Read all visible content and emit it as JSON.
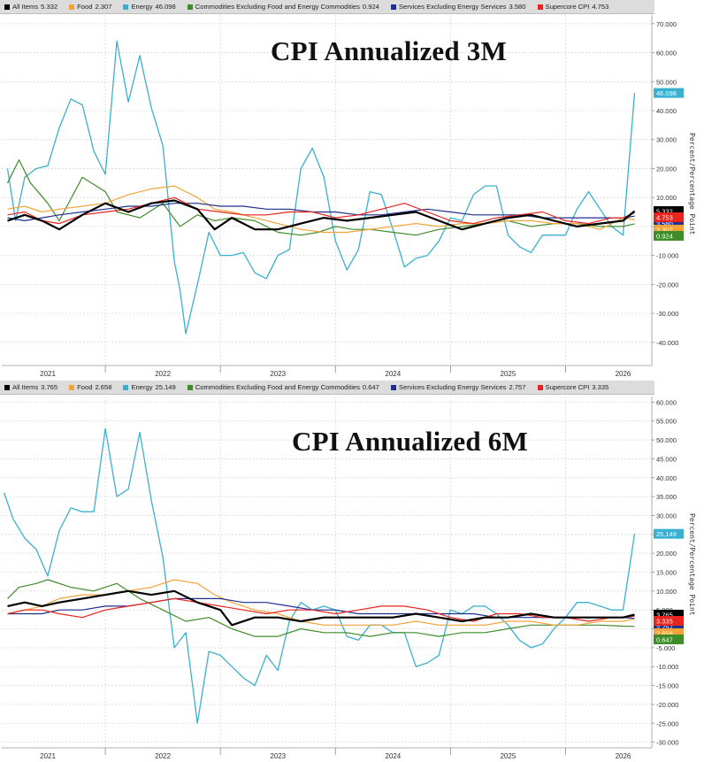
{
  "chart_data": [
    {
      "type": "line",
      "title": "CPI Annualized 3M",
      "ylabel": "Percent/Percentage Point",
      "ylim": [
        -48,
        73
      ],
      "yticks": [
        70,
        60,
        50,
        40,
        30,
        20,
        10,
        0,
        -10,
        -20,
        -30,
        -40
      ],
      "ytick_labels": [
        "70.000",
        "60.000",
        "50.000",
        "40.000",
        "30.000",
        "20.000",
        "10.000",
        "0",
        "-10.000",
        "-20.000",
        "-30.000",
        "-40.000"
      ],
      "xlim": [
        2020.6,
        2026.25
      ],
      "xticks": [
        2021,
        2022,
        2023,
        2024,
        2025,
        2026
      ],
      "xtick_labels": [
        "2021",
        "2022",
        "2023",
        "2024",
        "2025",
        "2026"
      ],
      "grid": true,
      "legend": "top",
      "series": [
        {
          "name": "All Items",
          "legend_value": "5.332",
          "color": "#000000",
          "last_label": "5.332",
          "x": [
            2020.65,
            2020.8,
            2020.95,
            2021.1,
            2021.3,
            2021.5,
            2021.7,
            2021.9,
            2022.1,
            2022.3,
            2022.45,
            2022.6,
            2022.8,
            2023.0,
            2023.2,
            2023.4,
            2023.6,
            2023.8,
            2024.0,
            2024.2,
            2024.4,
            2024.6,
            2024.8,
            2025.0,
            2025.2,
            2025.4,
            2025.6,
            2025.8,
            2026.0,
            2026.1
          ],
          "y": [
            2,
            4,
            2,
            -1,
            4,
            8,
            5,
            8,
            9,
            6,
            -1,
            3,
            -1,
            -1,
            1,
            3,
            2,
            3,
            4,
            5,
            2,
            -1,
            1,
            3,
            4,
            2,
            0,
            1,
            2,
            5.332
          ]
        },
        {
          "name": "Food",
          "legend_value": "2.307",
          "color": "#f2a33a",
          "last_label": "2.307",
          "x": [
            2020.65,
            2020.8,
            2020.95,
            2021.1,
            2021.3,
            2021.5,
            2021.7,
            2021.9,
            2022.1,
            2022.3,
            2022.45,
            2022.6,
            2022.8,
            2023.0,
            2023.2,
            2023.4,
            2023.6,
            2023.8,
            2024.0,
            2024.2,
            2024.4,
            2024.6,
            2024.8,
            2025.0,
            2025.2,
            2025.4,
            2025.6,
            2025.8,
            2026.0,
            2026.1
          ],
          "y": [
            6,
            7,
            5,
            6,
            7,
            8,
            11,
            13,
            14,
            10,
            6,
            5,
            3,
            1,
            -1,
            -2,
            -2,
            -1,
            0,
            1,
            0,
            1,
            1,
            2,
            2,
            1,
            1,
            -1,
            3,
            2.307
          ]
        },
        {
          "name": "Energy",
          "legend_value": "46.098",
          "color": "#3ab0d1",
          "last_label": "46.098",
          "x": [
            2020.65,
            2020.72,
            2020.8,
            2020.9,
            2021.0,
            2021.1,
            2021.2,
            2021.3,
            2021.4,
            2021.5,
            2021.6,
            2021.7,
            2021.8,
            2021.9,
            2022.0,
            2022.1,
            2022.15,
            2022.2,
            2022.3,
            2022.4,
            2022.5,
            2022.6,
            2022.7,
            2022.8,
            2022.9,
            2023.0,
            2023.1,
            2023.2,
            2023.3,
            2023.4,
            2023.5,
            2023.6,
            2023.7,
            2023.8,
            2023.9,
            2024.0,
            2024.1,
            2024.2,
            2024.3,
            2024.4,
            2024.5,
            2024.6,
            2024.7,
            2024.8,
            2024.9,
            2025.0,
            2025.1,
            2025.2,
            2025.3,
            2025.5,
            2025.6,
            2025.7,
            2025.8,
            2025.9,
            2026.0,
            2026.1
          ],
          "y": [
            20,
            2,
            17,
            20,
            21,
            34,
            44,
            42,
            26,
            18,
            64,
            43,
            59,
            41,
            28,
            -12,
            -22,
            -37,
            -20,
            -2,
            -10,
            -10,
            -9,
            -16,
            -18,
            -10,
            -8,
            20,
            27,
            17,
            -5,
            -15,
            -8,
            12,
            11,
            -1,
            -14,
            -11,
            -10,
            -5,
            3,
            2,
            11,
            14,
            14,
            -3,
            -7,
            -9,
            -3,
            -3,
            6,
            12,
            6,
            0,
            -3,
            46.098
          ]
        },
        {
          "name": "Commodities Excluding Food and Energy Commodities",
          "legend_value": "0.924",
          "color": "#3f8c2a",
          "last_label": "0.924",
          "x": [
            2020.65,
            2020.75,
            2020.85,
            2021.0,
            2021.1,
            2021.3,
            2021.5,
            2021.6,
            2021.8,
            2022.0,
            2022.15,
            2022.3,
            2022.45,
            2022.6,
            2022.8,
            2023.0,
            2023.2,
            2023.35,
            2023.5,
            2023.65,
            2023.8,
            2024.0,
            2024.2,
            2024.4,
            2024.6,
            2024.8,
            2025.0,
            2025.2,
            2025.4,
            2025.6,
            2025.8,
            2026.0,
            2026.1
          ],
          "y": [
            15,
            23,
            15,
            8,
            2,
            17,
            12,
            5,
            3,
            8,
            0,
            4,
            2,
            3,
            2,
            -2,
            -3,
            -2,
            0,
            -1,
            -1,
            -2,
            -3,
            -1,
            0,
            1,
            2,
            0,
            1,
            1,
            0,
            0,
            0.924
          ]
        },
        {
          "name": "Services Excluding Energy Services",
          "legend_value": "3.580",
          "color": "#1f2f8c",
          "last_label": "3.580",
          "x": [
            2020.65,
            2020.8,
            2020.95,
            2021.1,
            2021.3,
            2021.5,
            2021.7,
            2021.9,
            2022.1,
            2022.3,
            2022.5,
            2022.7,
            2022.9,
            2023.1,
            2023.3,
            2023.5,
            2023.7,
            2023.9,
            2024.1,
            2024.3,
            2024.5,
            2024.7,
            2024.9,
            2025.1,
            2025.3,
            2025.5,
            2025.7,
            2025.9,
            2026.0,
            2026.1
          ],
          "y": [
            3,
            2,
            3,
            4,
            5,
            6,
            7,
            7,
            8,
            8,
            7,
            7,
            6,
            6,
            5,
            5,
            4,
            4,
            5,
            6,
            5,
            4,
            4,
            4,
            3,
            3,
            3,
            3,
            3,
            3.58
          ]
        },
        {
          "name": "Supercore CPI",
          "legend_value": "4.753",
          "color": "#e8241e",
          "last_label": "4.753",
          "x": [
            2020.65,
            2020.8,
            2020.95,
            2021.1,
            2021.3,
            2021.5,
            2021.7,
            2021.9,
            2022.1,
            2022.3,
            2022.5,
            2022.7,
            2022.9,
            2023.1,
            2023.3,
            2023.5,
            2023.7,
            2023.9,
            2024.1,
            2024.3,
            2024.5,
            2024.7,
            2024.9,
            2025.1,
            2025.3,
            2025.5,
            2025.7,
            2025.9,
            2026.0,
            2026.1
          ],
          "y": [
            4,
            5,
            2,
            1,
            4,
            5,
            6,
            8,
            10,
            6,
            5,
            4,
            4,
            5,
            5,
            3,
            4,
            6,
            8,
            5,
            2,
            1,
            3,
            4,
            5,
            2,
            1,
            3,
            3,
            4.753
          ]
        }
      ]
    },
    {
      "type": "line",
      "title": "CPI Annualized 6M",
      "ylabel": "Percent/Percentage Point",
      "ylim": [
        -31.5,
        61.5
      ],
      "yticks": [
        60,
        55,
        50,
        45,
        40,
        35,
        30,
        25,
        20,
        15,
        10,
        5,
        0,
        -5,
        -10,
        -15,
        -20,
        -25,
        -30
      ],
      "ytick_labels": [
        "60.000",
        "55.000",
        "50.000",
        "45.000",
        "40.000",
        "35.000",
        "30.000",
        "25.000",
        "20.000",
        "15.000",
        "10.000",
        "5.000",
        "0",
        "-5.000",
        "-10.000",
        "-15.000",
        "-20.000",
        "-25.000",
        "-30.000"
      ],
      "xlim": [
        2020.6,
        2026.25
      ],
      "xticks": [
        2021,
        2022,
        2023,
        2024,
        2025,
        2026
      ],
      "xtick_labels": [
        "2021",
        "2022",
        "2023",
        "2024",
        "2025",
        "2026"
      ],
      "grid": true,
      "legend": "top",
      "series": [
        {
          "name": "All Items",
          "legend_value": "3.765",
          "color": "#000000",
          "last_label": "3.765",
          "x": [
            2020.65,
            2020.8,
            2020.95,
            2021.1,
            2021.3,
            2021.5,
            2021.7,
            2021.9,
            2022.1,
            2022.3,
            2022.5,
            2022.6,
            2022.8,
            2023.0,
            2023.2,
            2023.4,
            2023.6,
            2023.8,
            2024.0,
            2024.2,
            2024.4,
            2024.6,
            2024.8,
            2025.0,
            2025.2,
            2025.4,
            2025.6,
            2025.8,
            2026.0,
            2026.1
          ],
          "y": [
            6,
            7,
            6,
            7,
            8,
            9,
            10,
            9,
            10,
            7,
            5,
            1,
            3,
            3,
            2,
            3,
            3,
            3,
            3,
            4,
            3,
            2,
            3,
            3,
            4,
            3,
            3,
            3,
            3,
            3.765
          ]
        },
        {
          "name": "Food",
          "legend_value": "2.658",
          "color": "#f2a33a",
          "last_label": "2.658",
          "x": [
            2020.65,
            2020.8,
            2020.95,
            2021.1,
            2021.3,
            2021.5,
            2021.7,
            2021.9,
            2022.1,
            2022.3,
            2022.45,
            2022.6,
            2022.8,
            2023.0,
            2023.2,
            2023.4,
            2023.6,
            2023.8,
            2024.0,
            2024.2,
            2024.4,
            2024.6,
            2024.8,
            2025.0,
            2025.2,
            2025.4,
            2025.6,
            2025.8,
            2026.0,
            2026.1
          ],
          "y": [
            4,
            5,
            6,
            8,
            9,
            9,
            10,
            11,
            13,
            12,
            9,
            7,
            5,
            4,
            2,
            1,
            1,
            1,
            1,
            2,
            1,
            1,
            1,
            2,
            2,
            1,
            1,
            2,
            2,
            2.658
          ]
        },
        {
          "name": "Energy",
          "legend_value": "25.149",
          "color": "#3ab0d1",
          "last_label": "25.149",
          "x": [
            2020.62,
            2020.7,
            2020.8,
            2020.9,
            2021.0,
            2021.1,
            2021.2,
            2021.3,
            2021.4,
            2021.5,
            2021.6,
            2021.7,
            2021.8,
            2021.9,
            2022.0,
            2022.1,
            2022.2,
            2022.3,
            2022.4,
            2022.5,
            2022.6,
            2022.7,
            2022.8,
            2022.9,
            2023.0,
            2023.1,
            2023.2,
            2023.3,
            2023.4,
            2023.5,
            2023.6,
            2023.7,
            2023.8,
            2023.9,
            2024.0,
            2024.1,
            2024.2,
            2024.3,
            2024.4,
            2024.5,
            2024.6,
            2024.7,
            2024.8,
            2024.9,
            2025.0,
            2025.1,
            2025.2,
            2025.3,
            2025.4,
            2025.5,
            2025.6,
            2025.7,
            2025.8,
            2025.9,
            2026.0,
            2026.1
          ],
          "y": [
            36,
            29,
            24,
            21,
            14,
            26,
            32,
            31,
            31,
            53,
            35,
            37,
            52,
            34,
            19,
            -5,
            -1,
            -25,
            -6,
            -7,
            -10,
            -13,
            -15,
            -7,
            -11,
            2,
            7,
            5,
            6,
            5,
            -2,
            -3,
            1,
            1,
            -1,
            -1,
            -10,
            -9,
            -7,
            5,
            4,
            6,
            6,
            4,
            1,
            -3,
            -5,
            -4,
            0,
            3,
            7,
            7,
            6,
            5,
            5,
            25.149
          ]
        },
        {
          "name": "Commodities Excluding Food and Energy Commodities",
          "legend_value": "0.647",
          "color": "#3f8c2a",
          "last_label": "0.647",
          "x": [
            2020.65,
            2020.75,
            2020.9,
            2021.0,
            2021.2,
            2021.4,
            2021.6,
            2021.8,
            2022.0,
            2022.2,
            2022.4,
            2022.6,
            2022.8,
            2023.0,
            2023.2,
            2023.4,
            2023.6,
            2023.8,
            2024.0,
            2024.2,
            2024.4,
            2024.6,
            2024.8,
            2025.0,
            2025.2,
            2025.4,
            2025.6,
            2025.8,
            2026.0,
            2026.1
          ],
          "y": [
            8,
            11,
            12,
            13,
            11,
            10,
            12,
            8,
            5,
            2,
            3,
            0,
            -2,
            -2,
            0,
            -1,
            -1,
            -2,
            -1,
            -1,
            -2,
            -1,
            -1,
            0,
            1,
            1,
            1,
            1,
            0.7,
            0.647
          ]
        },
        {
          "name": "Services Excluding Energy Services",
          "legend_value": "2.757",
          "color": "#1f2f8c",
          "last_label": "2.757",
          "x": [
            2020.65,
            2020.8,
            2020.95,
            2021.1,
            2021.3,
            2021.5,
            2021.7,
            2021.9,
            2022.1,
            2022.3,
            2022.5,
            2022.7,
            2022.9,
            2023.1,
            2023.3,
            2023.5,
            2023.7,
            2023.9,
            2024.1,
            2024.3,
            2024.5,
            2024.7,
            2024.9,
            2025.1,
            2025.3,
            2025.5,
            2025.7,
            2025.9,
            2026.0,
            2026.1
          ],
          "y": [
            4,
            4,
            4,
            5,
            5,
            6,
            6,
            7,
            8,
            8,
            8,
            7,
            7,
            6,
            5,
            5,
            4,
            4,
            4,
            4,
            4,
            4,
            3,
            3,
            3,
            3,
            3,
            3,
            3,
            2.757
          ]
        },
        {
          "name": "Supercore CPI",
          "legend_value": "3.335",
          "color": "#e8241e",
          "last_label": "3.335",
          "x": [
            2020.65,
            2020.8,
            2020.95,
            2021.1,
            2021.3,
            2021.5,
            2021.7,
            2021.9,
            2022.1,
            2022.3,
            2022.5,
            2022.7,
            2022.9,
            2023.1,
            2023.3,
            2023.5,
            2023.7,
            2023.9,
            2024.1,
            2024.3,
            2024.5,
            2024.7,
            2024.9,
            2025.1,
            2025.3,
            2025.5,
            2025.7,
            2025.9,
            2026.0,
            2026.1
          ],
          "y": [
            4,
            5,
            5,
            4,
            3,
            5,
            6,
            7,
            8,
            7,
            6,
            5,
            4,
            5,
            5,
            4,
            5,
            6,
            6,
            5,
            3,
            2,
            4,
            4,
            3,
            3,
            2,
            3,
            3,
            3.335
          ]
        }
      ]
    }
  ]
}
